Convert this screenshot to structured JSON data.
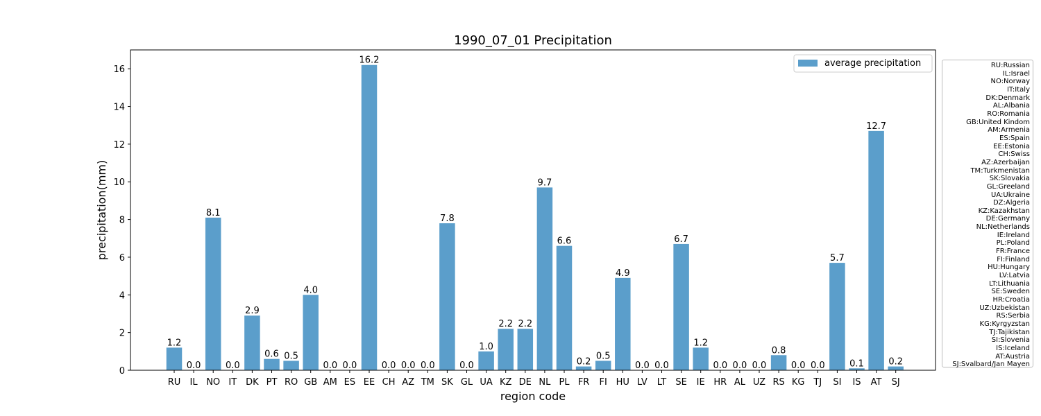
{
  "chart_data": {
    "type": "bar",
    "title": "1990_07_01 Precipitation",
    "xlabel": "region code",
    "ylabel": "precipitation(mm)",
    "ylim": [
      0,
      17
    ],
    "yticks": [
      "0",
      "2",
      "4",
      "6",
      "8",
      "10",
      "12",
      "14",
      "16"
    ],
    "grid": false,
    "legend_position": "top-right",
    "bar_color": "#5b9ecb",
    "categories": [
      "RU",
      "IL",
      "NO",
      "IT",
      "DK",
      "PT",
      "RO",
      "GB",
      "AM",
      "ES",
      "EE",
      "CH",
      "AZ",
      "TM",
      "SK",
      "GL",
      "UA",
      "KZ",
      "DE",
      "NL",
      "PL",
      "FR",
      "FI",
      "HU",
      "LV",
      "LT",
      "SE",
      "IE",
      "HR",
      "AL",
      "UZ",
      "RS",
      "KG",
      "TJ",
      "SI",
      "IS",
      "AT",
      "SJ"
    ],
    "series": [
      {
        "name": "average precipitation",
        "values": [
          1.2,
          0.0,
          8.1,
          0.0,
          2.9,
          0.6,
          0.5,
          4.0,
          0.0,
          0.0,
          16.2,
          0.0,
          0.0,
          0.0,
          7.8,
          0.0,
          1.0,
          2.2,
          2.2,
          9.7,
          6.6,
          0.2,
          0.5,
          4.9,
          0.0,
          0.0,
          6.7,
          1.2,
          0.0,
          0.0,
          0.0,
          0.8,
          0.0,
          0.0,
          5.7,
          0.1,
          12.7,
          0.2
        ],
        "labels": [
          "1.2",
          "0.0",
          "8.1",
          "0.0",
          "2.9",
          "0.6",
          "0.5",
          "4.0",
          "0.0",
          "0.0",
          "16.2",
          "0.0",
          "0.0",
          "0.0",
          "7.8",
          "0.0",
          "1.0",
          "2.2",
          "2.2",
          "9.7",
          "6.6",
          "0.2",
          "0.5",
          "4.9",
          "0.0",
          "0.0",
          "6.7",
          "1.2",
          "0.0",
          "0.0",
          "0.0",
          "0.8",
          "0.0",
          "0.0",
          "5.7",
          "0.1",
          "12.7",
          "0.2"
        ]
      }
    ]
  },
  "country_key": [
    "RU:Russian",
    "IL:Israel",
    "NO:Norway",
    "IT:Italy",
    "DK:Denmark",
    "AL:Albania",
    "RO:Romania",
    "GB:United Kindom",
    "AM:Armenia",
    "ES:Spain",
    "EE:Estonia",
    "CH:Swiss",
    "AZ:Azerbaijan",
    "TM:Turkmenistan",
    "SK:Slovakia",
    "GL:Greeland",
    "UA:Ukraine",
    "DZ:Algeria",
    "KZ:Kazakhstan",
    "DE:Germany",
    "NL:Netherlands",
    "IE:Ireland",
    "PL:Poland",
    "FR:France",
    "FI:Finland",
    "HU:Hungary",
    "LV:Latvia",
    "LT:Lithuania",
    "SE:Sweden",
    "HR:Croatia",
    "UZ:Uzbekistan",
    "RS:Serbia",
    "KG:Kyrgyzstan",
    "TJ:Tajikistan",
    "SI:Slovenia",
    "IS:Iceland",
    "AT:Austria",
    "SJ:Svalbard/Jan Mayen"
  ]
}
